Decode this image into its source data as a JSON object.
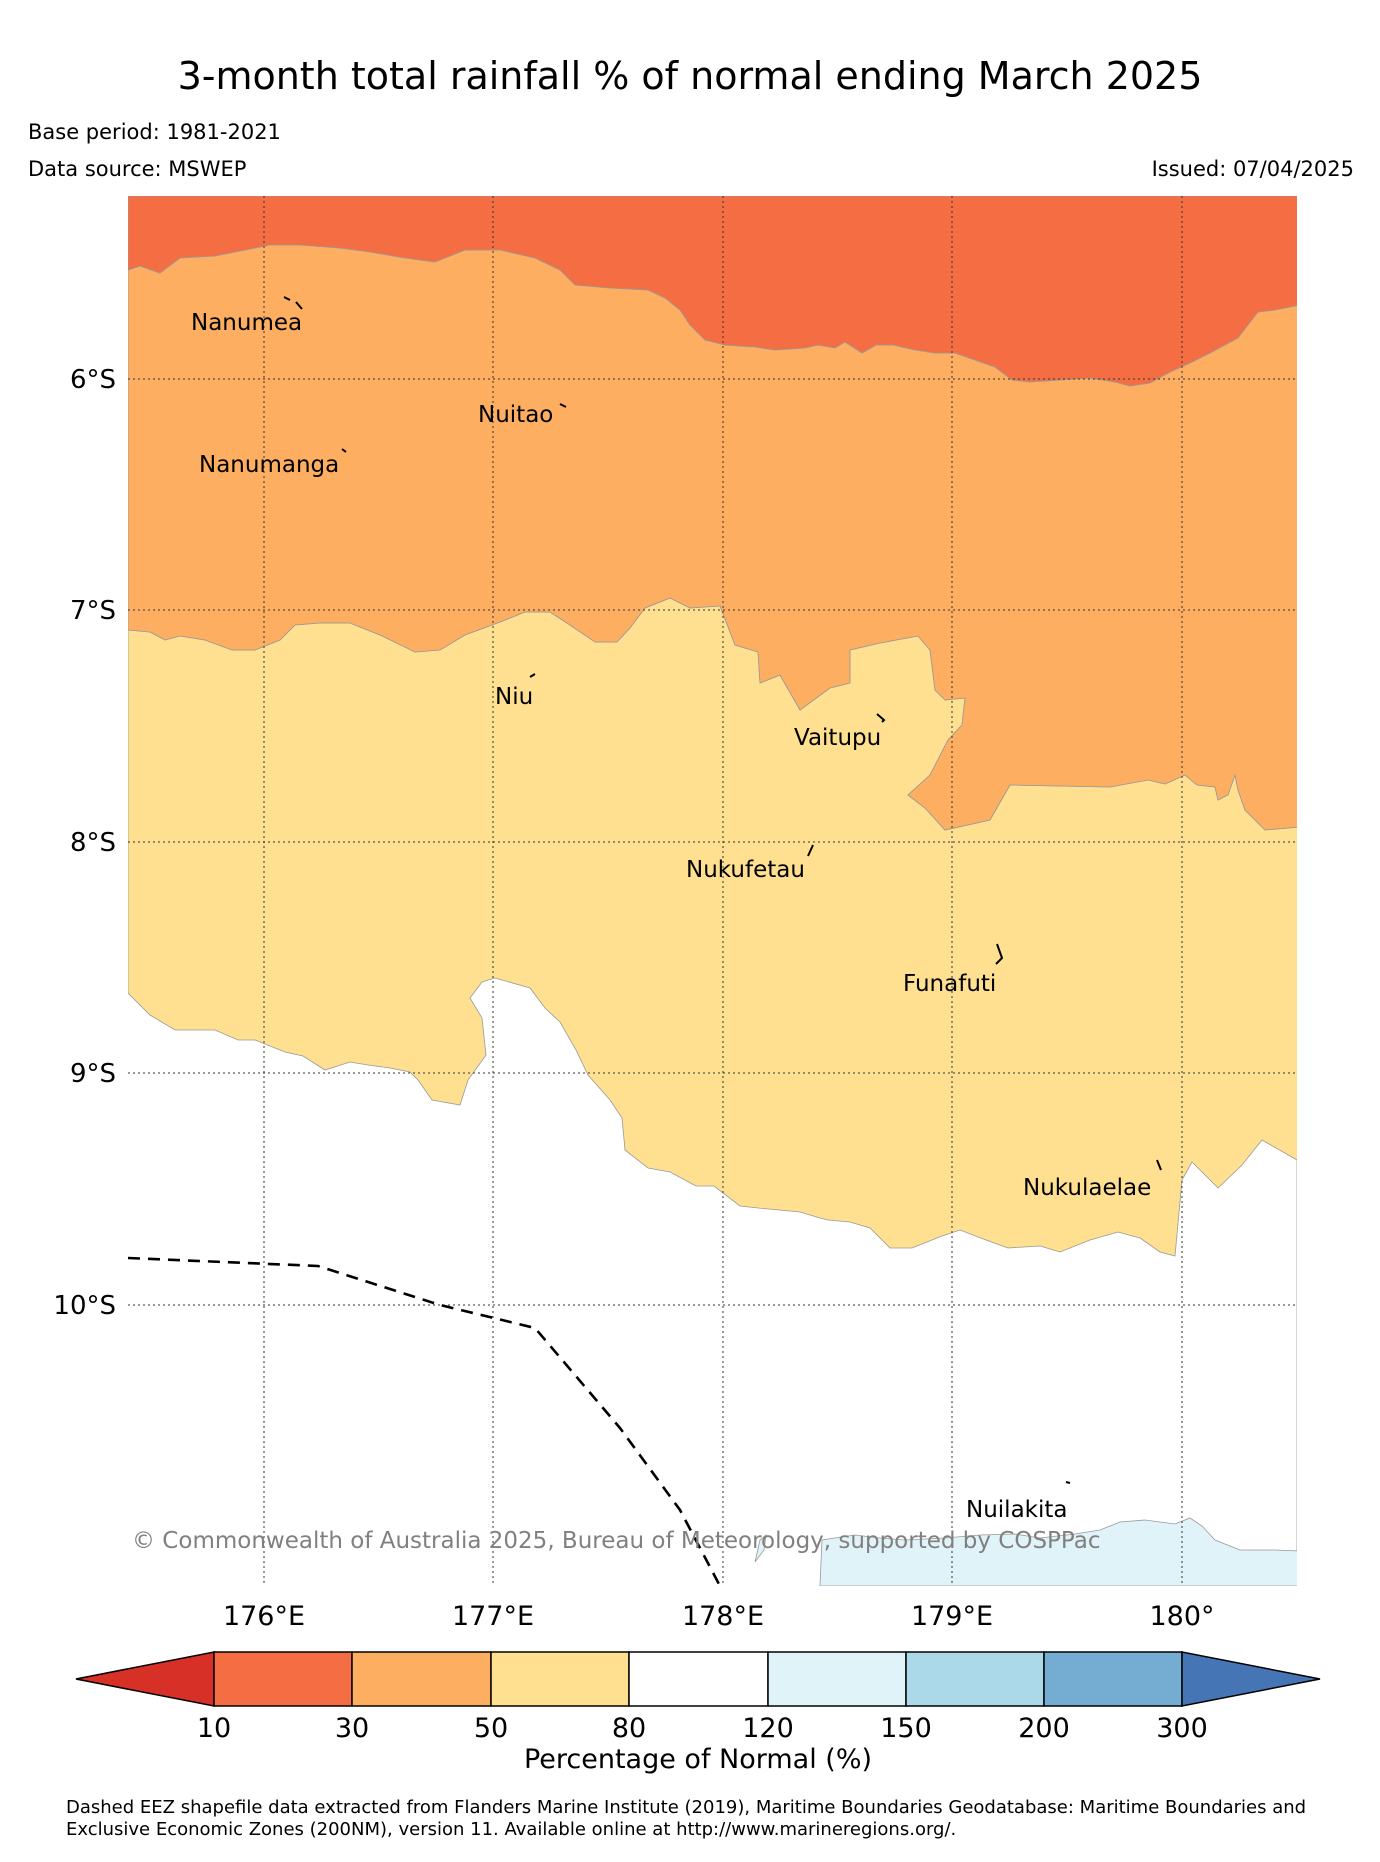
{
  "header": {
    "title": "3-month total rainfall % of normal ending March 2025",
    "base_period": "Base period: 1981-2021",
    "data_source": "Data source: MSWEP",
    "issued": "Issued: 07/04/2025"
  },
  "map": {
    "latitude_labels": [
      "6°S",
      "7°S",
      "8°S",
      "9°S",
      "10°S"
    ],
    "longitude_labels": [
      "176°E",
      "177°E",
      "178°E",
      "179°E",
      "180°"
    ],
    "places": [
      "Nanumea",
      "Nuitao",
      "Nanumanga",
      "Niu",
      "Vaitupu",
      "Nukufetau",
      "Funafuti",
      "Nukulaelae",
      "Nuilakita"
    ],
    "copyright": "© Commonwealth of Australia 2025, Bureau of Meteorology, supported by COSPPac",
    "grid": "dotted",
    "eez_boundary": "dashed"
  },
  "colorbar": {
    "label": "Percentage of Normal (%)",
    "ticks": [
      "10",
      "30",
      "50",
      "80",
      "120",
      "150",
      "200",
      "300"
    ],
    "colors": [
      "#d73027",
      "#f46d43",
      "#fdae61",
      "#fee090",
      "#ffffff",
      "#e0f3f8",
      "#abd9e9",
      "#74add1",
      "#4575b4"
    ]
  },
  "footnote": "Dashed EEZ shapefile data extracted from Flanders Marine Institute (2019), Maritime Boundaries Geodatabase: Maritime Boundaries and Exclusive Economic Zones (200NM), version 11. Available online at http://www.marineregions.org/."
}
